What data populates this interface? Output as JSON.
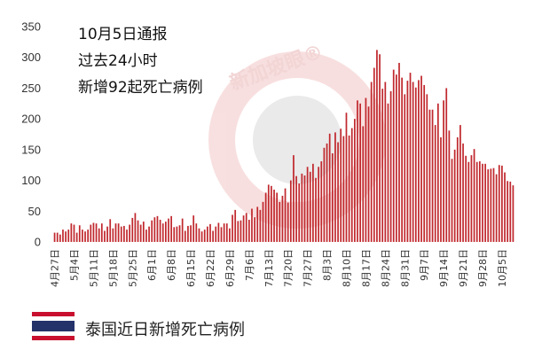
{
  "watermark": {
    "text": "新加坡眼®"
  },
  "caption": "泰国近日新增死亡病例",
  "chart_data": {
    "type": "bar",
    "title_lines": [
      "10月5日通报",
      "过去24小时",
      "新增92起死亡病例"
    ],
    "xlabel": "",
    "ylabel": "",
    "ylim": [
      0,
      350
    ],
    "yticks": [
      0,
      50,
      100,
      150,
      200,
      250,
      300,
      350
    ],
    "start_date": "4月27日",
    "tick_labels": [
      "4月27日",
      "5月4日",
      "5月11日",
      "5月18日",
      "5月25日",
      "6月1日",
      "6月8日",
      "6月15日",
      "6月22日",
      "6月29日",
      "7月6日",
      "7月13日",
      "7月20日",
      "7月27日",
      "8月3日",
      "8月10日",
      "8月17日",
      "8月24日",
      "8月31日",
      "9月7日",
      "9月14日",
      "9月21日",
      "9月28日",
      "10月5日"
    ],
    "bar_color": "#c0282d",
    "values": [
      15,
      15,
      12,
      20,
      17,
      20,
      30,
      28,
      15,
      27,
      20,
      17,
      20,
      28,
      31,
      30,
      22,
      30,
      18,
      25,
      37,
      22,
      30,
      30,
      25,
      26,
      20,
      28,
      39,
      47,
      35,
      28,
      33,
      20,
      25,
      35,
      40,
      42,
      36,
      30,
      33,
      38,
      42,
      24,
      25,
      27,
      38,
      18,
      26,
      27,
      43,
      30,
      22,
      17,
      20,
      25,
      29,
      18,
      25,
      31,
      24,
      30,
      30,
      22,
      44,
      52,
      34,
      35,
      43,
      47,
      36,
      54,
      40,
      57,
      52,
      65,
      80,
      93,
      91,
      85,
      80,
      65,
      75,
      87,
      64,
      100,
      141,
      107,
      95,
      111,
      108,
      122,
      114,
      127,
      104,
      122,
      131,
      153,
      160,
      176,
      144,
      178,
      162,
      184,
      172,
      210,
      173,
      185,
      200,
      230,
      225,
      188,
      234,
      220,
      260,
      283,
      312,
      305,
      249,
      260,
      225,
      245,
      280,
      272,
      291,
      267,
      240,
      262,
      275,
      260,
      251,
      263,
      270,
      255,
      240,
      215,
      215,
      190,
      225,
      170,
      230,
      250,
      181,
      135,
      150,
      170,
      190,
      160,
      140,
      130,
      141,
      151,
      130,
      131,
      127,
      127,
      118,
      119,
      120,
      110,
      125,
      124,
      113,
      99,
      98,
      92
    ]
  }
}
